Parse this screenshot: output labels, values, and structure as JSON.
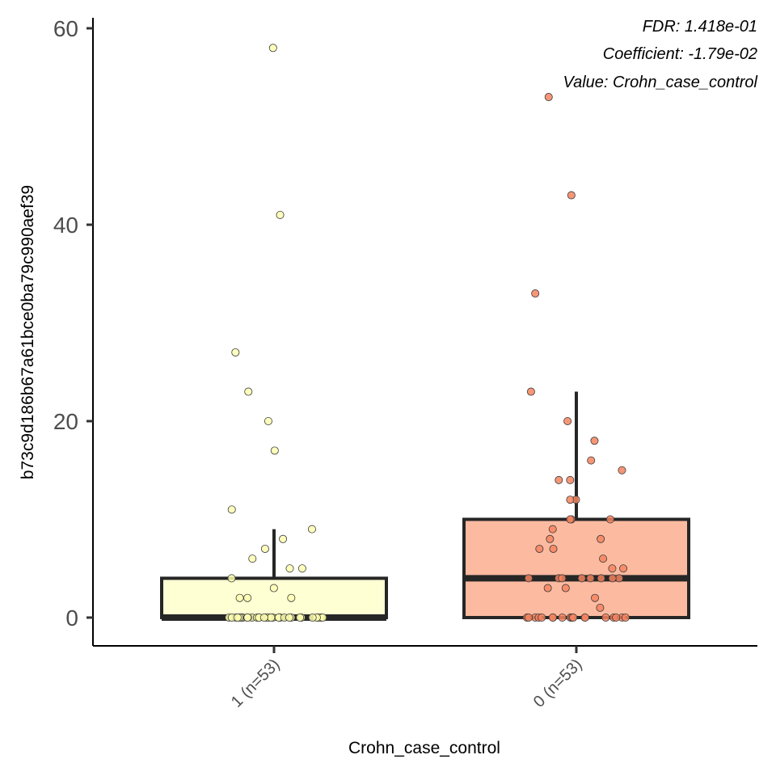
{
  "chart_data": {
    "type": "box",
    "xlabel": "Crohn_case_control",
    "ylabel": "b73c9d186b67a61bce0ba79c990aef39",
    "ylim": [
      -2.9,
      61
    ],
    "yticks": [
      0,
      20,
      40,
      60
    ],
    "annotations": [
      "FDR: 1.418e-01",
      "Coefficient: -1.79e-02",
      "Value: Crohn_case_control"
    ],
    "groups": [
      {
        "label": "1 (n=53)",
        "fill": "#ffffd4",
        "point_color": "#ffffb2",
        "box": {
          "q1": 0,
          "median": 0,
          "q3": 4,
          "whisker_low": 0,
          "whisker_high": 9
        },
        "points": [
          58,
          41,
          27,
          23,
          20,
          17,
          11,
          9,
          8,
          7,
          6,
          5,
          5,
          4,
          3,
          2,
          2,
          2,
          0,
          0,
          0,
          0,
          0,
          0,
          0,
          0,
          0,
          0,
          0,
          0,
          0,
          0,
          0,
          0,
          0,
          0,
          0,
          0,
          0,
          0,
          0,
          0,
          0,
          0,
          0,
          0,
          0,
          0,
          0,
          0,
          0,
          0,
          0
        ]
      },
      {
        "label": "0 (n=53)",
        "fill": "#fcbba1",
        "point_color": "#f4845f",
        "box": {
          "q1": 0,
          "median": 4,
          "q3": 10,
          "whisker_low": 0,
          "whisker_high": 23
        },
        "points": [
          53,
          43,
          33,
          23,
          20,
          18,
          16,
          15,
          14,
          14,
          12,
          12,
          10,
          10,
          10,
          9,
          8,
          8,
          7,
          7,
          6,
          5,
          5,
          4,
          4,
          4,
          4,
          4,
          4,
          4,
          4,
          3,
          3,
          2,
          1,
          0,
          0,
          0,
          0,
          0,
          0,
          0,
          0,
          0,
          0,
          0,
          0,
          0,
          0,
          0,
          0,
          0,
          0
        ]
      }
    ]
  }
}
